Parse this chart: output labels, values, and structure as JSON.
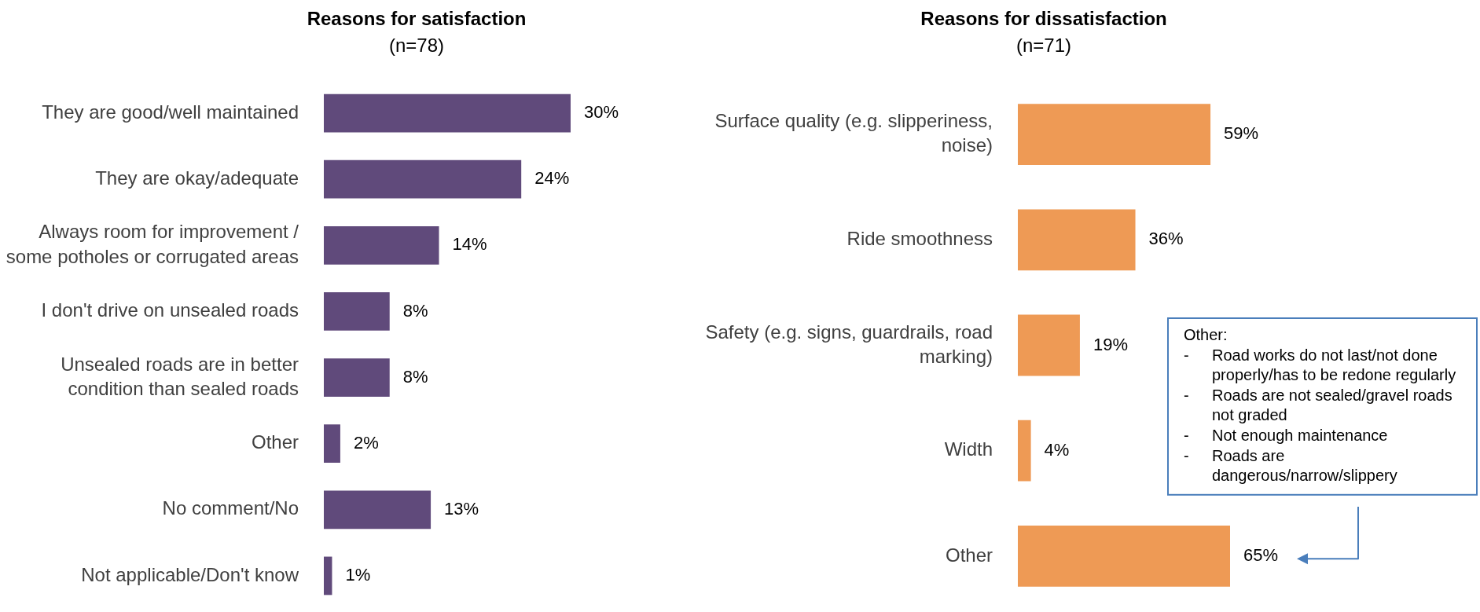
{
  "chart_data": [
    {
      "type": "bar",
      "orientation": "horizontal",
      "title": "Reasons for satisfaction",
      "subtitle": "(n=78)",
      "categories": [
        "They are good/well maintained",
        "They are okay/adequate",
        "Always room for improvement / some potholes or corrugated areas",
        "I don't drive on unsealed roads",
        "Unsealed roads are in better condition than sealed roads",
        "Other",
        "No comment/No",
        "Not applicable/Don't know"
      ],
      "values": [
        30,
        24,
        14,
        8,
        8,
        2,
        13,
        1
      ],
      "value_labels": [
        "30%",
        "24%",
        "14%",
        "8%",
        "8%",
        "2%",
        "13%",
        "1%"
      ],
      "color": "#604a7b",
      "tick_labels": "y"
    },
    {
      "type": "bar",
      "orientation": "horizontal",
      "title": "Reasons for dissatisfaction",
      "subtitle": "(n=71)",
      "categories": [
        "Surface quality (e.g. slipperiness, noise)",
        "Ride smoothness",
        "Safety (e.g. signs, guardrails, road marking)",
        "Width",
        "Other"
      ],
      "values": [
        59,
        36,
        19,
        4,
        65
      ],
      "value_labels": [
        "59%",
        "36%",
        "19%",
        "4%",
        "65%"
      ],
      "color": "#ee9a55",
      "tick_labels": "y",
      "annotations": [
        "Other:\n- Road works do not last/not done properly/has to be redone regularly\n- Roads are not sealed/gravel roads not graded\n- Not enough maintenance\n- Roads are dangerous/narrow/slippery"
      ]
    }
  ]
}
